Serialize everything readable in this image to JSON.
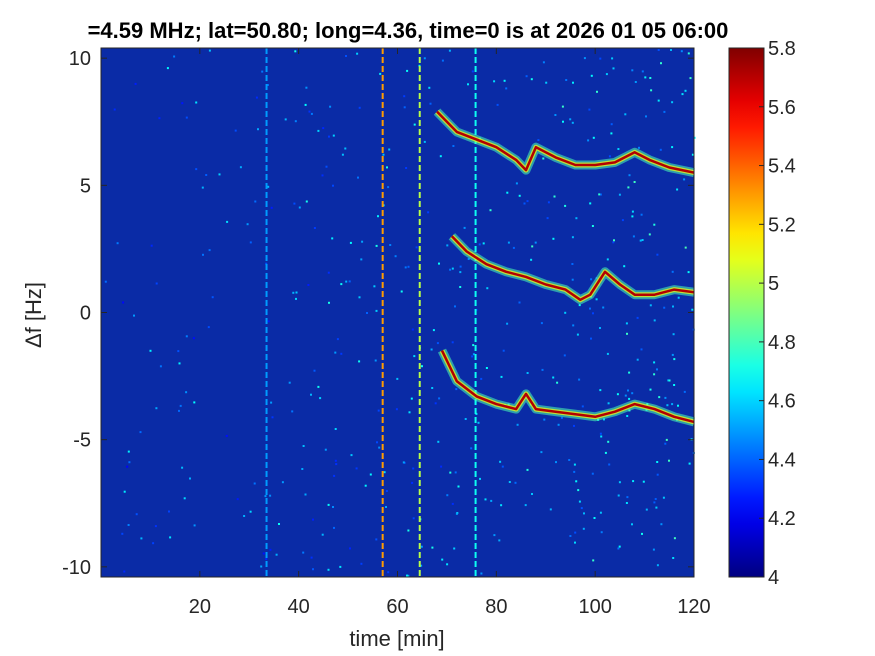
{
  "chart_data": {
    "type": "heatmap",
    "title": "=4.59 MHz;  lat=50.80; long=4.36, time=0 is at 2026 01 05 06:00",
    "xlabel": "time [min]",
    "ylabel": "Δf [Hz]",
    "xlim": [
      0,
      120
    ],
    "ylim": [
      -10.4,
      10.4
    ],
    "x_ticks": [
      20,
      40,
      60,
      80,
      100,
      120
    ],
    "y_ticks": [
      -10,
      -5,
      0,
      5,
      10
    ],
    "colorbar": {
      "min": 4,
      "max": 5.8,
      "ticks": [
        4,
        4.2,
        4.4,
        4.6,
        4.8,
        5,
        5.2,
        5.4,
        5.6,
        5.8
      ],
      "colormap": "jet"
    },
    "background_color": "#0a2ba6",
    "vertical_lines": [
      {
        "x": 33.5,
        "level": 4.5
      },
      {
        "x": 57.0,
        "level": 5.3
      },
      {
        "x": 64.5,
        "level": 5.0
      },
      {
        "x": 75.8,
        "level": 4.7
      }
    ],
    "traces": [
      {
        "points": [
          [
            68,
            7.9
          ],
          [
            72,
            7.1
          ],
          [
            76,
            6.8
          ],
          [
            80,
            6.5
          ],
          [
            84,
            6.0
          ],
          [
            86,
            5.6
          ],
          [
            88,
            6.5
          ],
          [
            92,
            6.1
          ],
          [
            96,
            5.8
          ],
          [
            100,
            5.8
          ],
          [
            104,
            5.9
          ],
          [
            108,
            6.3
          ],
          [
            111,
            6.0
          ],
          [
            115,
            5.7
          ],
          [
            120,
            5.5
          ]
        ]
      },
      {
        "points": [
          [
            71,
            3.0
          ],
          [
            74,
            2.4
          ],
          [
            78,
            1.9
          ],
          [
            82,
            1.6
          ],
          [
            86,
            1.4
          ],
          [
            90,
            1.1
          ],
          [
            94,
            0.9
          ],
          [
            97,
            0.5
          ],
          [
            99,
            0.7
          ],
          [
            102,
            1.6
          ],
          [
            105,
            1.1
          ],
          [
            108,
            0.7
          ],
          [
            112,
            0.7
          ],
          [
            116,
            0.9
          ],
          [
            120,
            0.8
          ]
        ]
      },
      {
        "points": [
          [
            69,
            -1.5
          ],
          [
            72,
            -2.7
          ],
          [
            76,
            -3.3
          ],
          [
            80,
            -3.6
          ],
          [
            84,
            -3.8
          ],
          [
            86,
            -3.2
          ],
          [
            88,
            -3.8
          ],
          [
            92,
            -3.9
          ],
          [
            96,
            -4.0
          ],
          [
            100,
            -4.1
          ],
          [
            104,
            -3.9
          ],
          [
            108,
            -3.6
          ],
          [
            112,
            -3.8
          ],
          [
            116,
            -4.1
          ],
          [
            120,
            -4.3
          ]
        ]
      }
    ]
  }
}
